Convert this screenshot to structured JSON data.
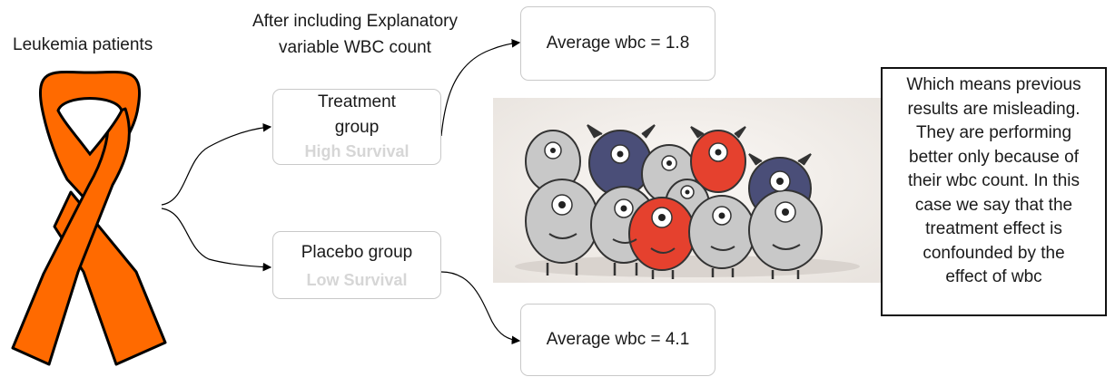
{
  "patients_label": "Leukemia patients",
  "heading": {
    "line1": "After including Explanatory",
    "line2": "variable WBC count"
  },
  "treatment": {
    "title_line1": "Treatment",
    "title_line2": "group",
    "outcome": "High Survival"
  },
  "placebo": {
    "title": "Placebo group",
    "outcome": "Low Survival"
  },
  "wbc_high_box": "Average wbc = 1.8",
  "wbc_low_box": "Average wbc = 4.1",
  "note_lines": [
    "Which means previous",
    "results are misleading.",
    "They are performing",
    "better only because of",
    "their wbc count. In this",
    "case we say that the",
    "treatment effect is",
    "confounded by the",
    "effect of wbc"
  ],
  "colors": {
    "ribbon": "#ff6a00",
    "outcome_text": "#d6d6d6",
    "monster_gray": "#c8c8c8",
    "monster_blue": "#4a4e78",
    "monster_red": "#e5412e"
  },
  "icons": [
    "awareness-ribbon-icon",
    "monsters-illustration"
  ]
}
